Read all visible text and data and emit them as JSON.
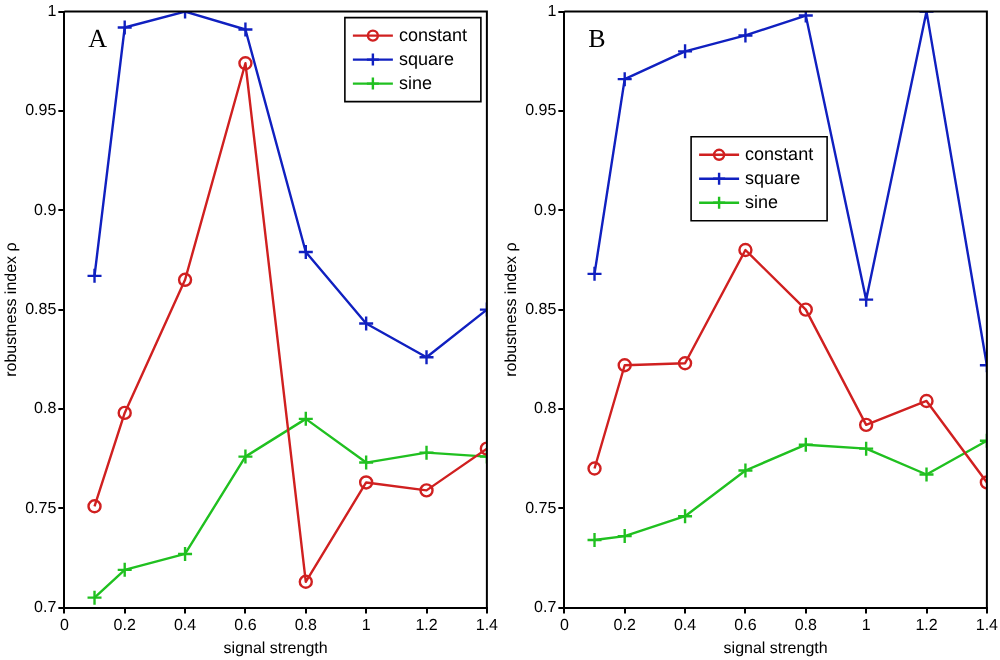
{
  "chart_data": [
    {
      "type": "line",
      "xlabel": "signal strength",
      "ylabel": "robustness index ρ",
      "annotations": [
        "A"
      ],
      "legend": "top right",
      "grid": false,
      "x": [
        0.1,
        0.2,
        0.4,
        0.6,
        0.8,
        1.0,
        1.2,
        1.4
      ],
      "xlim": [
        0,
        1.4
      ],
      "xticks": [
        0,
        0.2,
        0.4,
        0.6,
        0.8,
        1,
        1.2,
        1.4
      ],
      "ylim": [
        0.7,
        1
      ],
      "yticks": [
        0.7,
        0.75,
        0.8,
        0.85,
        0.9,
        0.95,
        1
      ],
      "series": [
        {
          "name": "constant",
          "color": "#d02020",
          "marker": "circle",
          "values": [
            0.751,
            0.798,
            0.865,
            0.974,
            0.713,
            0.763,
            0.759,
            0.78
          ]
        },
        {
          "name": "square",
          "color": "#1020c0",
          "marker": "cross",
          "values": [
            0.867,
            0.992,
            1.0,
            0.991,
            0.879,
            0.843,
            0.826,
            0.85
          ]
        },
        {
          "name": "sine",
          "color": "#20c020",
          "marker": "cross",
          "values": [
            0.705,
            0.719,
            0.727,
            0.776,
            0.795,
            0.773,
            0.778,
            0.776
          ]
        }
      ]
    },
    {
      "type": "line",
      "xlabel": "signal strength",
      "ylabel": "robustness index ρ",
      "annotations": [
        "B"
      ],
      "legend": "top left",
      "grid": false,
      "x": [
        0.1,
        0.2,
        0.4,
        0.6,
        0.8,
        1.0,
        1.2,
        1.4
      ],
      "xlim": [
        0,
        1.4
      ],
      "xticks": [
        0,
        0.2,
        0.4,
        0.6,
        0.8,
        1,
        1.2,
        1.4
      ],
      "ylim": [
        0.7,
        1
      ],
      "yticks": [
        0.7,
        0.75,
        0.8,
        0.85,
        0.9,
        0.95,
        1
      ],
      "series": [
        {
          "name": "constant",
          "color": "#d02020",
          "marker": "circle",
          "values": [
            0.77,
            0.822,
            0.823,
            0.88,
            0.85,
            0.792,
            0.804,
            0.763
          ]
        },
        {
          "name": "square",
          "color": "#1020c0",
          "marker": "cross",
          "values": [
            0.868,
            0.966,
            0.98,
            0.988,
            0.998,
            0.855,
            1.0,
            0.822
          ]
        },
        {
          "name": "sine",
          "color": "#20c020",
          "marker": "cross",
          "values": [
            0.734,
            0.736,
            0.746,
            0.769,
            0.782,
            0.78,
            0.767,
            0.784
          ]
        }
      ]
    }
  ]
}
